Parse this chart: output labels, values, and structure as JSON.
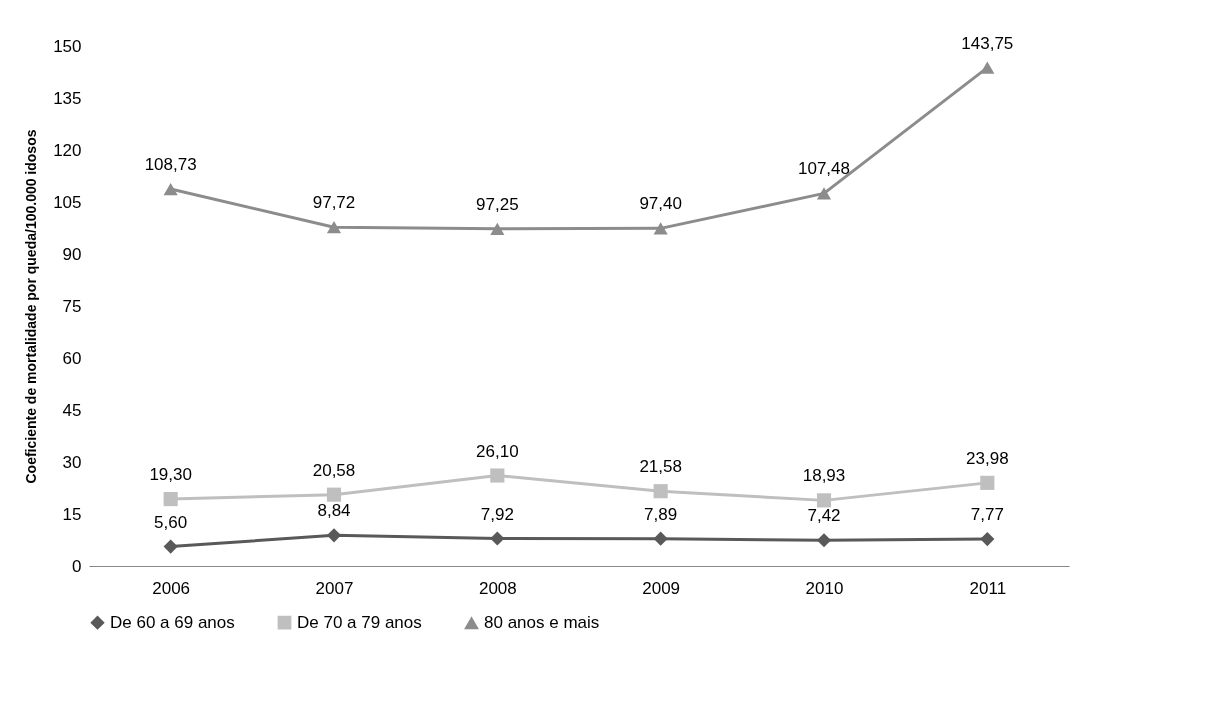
{
  "chart_data": {
    "type": "line",
    "ylabel": "Coeficiente de mortalidade por queda/100.000 idosos",
    "categories": [
      "2006",
      "2007",
      "2008",
      "2009",
      "2010",
      "2011"
    ],
    "ylim": [
      0,
      150
    ],
    "yticks": [
      0,
      15,
      30,
      45,
      60,
      75,
      90,
      105,
      120,
      135,
      150
    ],
    "grid": false,
    "legend": "bottom",
    "series": [
      {
        "name": "De 60 a 69 anos",
        "color": "#595959",
        "marker": "diamond",
        "values": [
          5.6,
          8.84,
          7.92,
          7.89,
          7.42,
          7.77
        ],
        "value_labels": [
          "5,60",
          "8,84",
          "7,92",
          "7,89",
          "7,42",
          "7,77"
        ]
      },
      {
        "name": "De 70 a 79 anos",
        "color": "#bfbfbf",
        "marker": "square",
        "values": [
          19.3,
          20.58,
          26.1,
          21.58,
          18.93,
          23.98
        ],
        "value_labels": [
          "19,30",
          "20,58",
          "26,10",
          "21,58",
          "18,93",
          "23,98"
        ]
      },
      {
        "name": "80 anos e mais",
        "color": "#8c8c8c",
        "marker": "triangle",
        "values": [
          108.73,
          97.72,
          97.25,
          97.4,
          107.48,
          143.75
        ],
        "value_labels": [
          "108,73",
          "97,72",
          "97,25",
          "97,40",
          "107,48",
          "143,75"
        ]
      }
    ]
  }
}
